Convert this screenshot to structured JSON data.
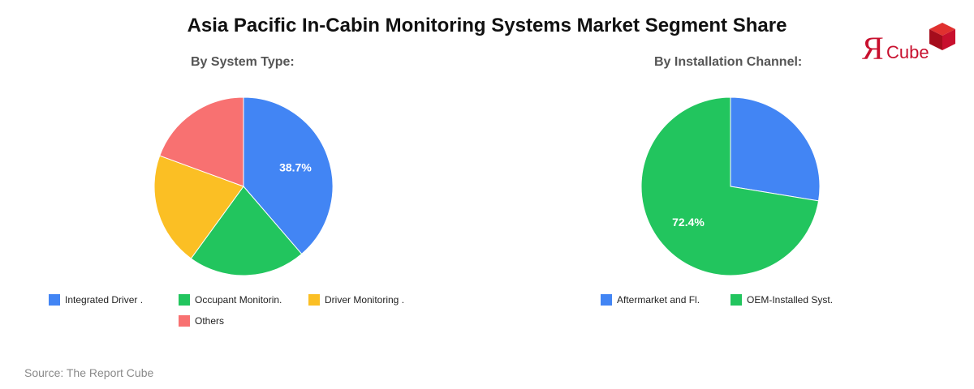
{
  "title": "Asia Pacific In-Cabin Monitoring Systems Market Segment Share",
  "source": "Source: The Report Cube",
  "logo": {
    "mark": "Я",
    "text": "Cube",
    "icon": "red-cube-icon",
    "color": "#c8102e"
  },
  "chart_data": [
    {
      "type": "pie",
      "title": "By System Type:",
      "labels": [
        "Integrated Driver .",
        "Occupant Monitorin.",
        "Driver Monitoring .",
        "Others"
      ],
      "values": [
        38.7,
        21.3,
        20.6,
        19.4
      ],
      "data_labels": [
        "38.7%",
        "",
        "",
        ""
      ],
      "colors": [
        "#4285f4",
        "#22c55e",
        "#fbbf24",
        "#f87171"
      ],
      "legend_position": "bottom"
    },
    {
      "type": "pie",
      "title": "By Installation Channel:",
      "labels": [
        "Aftermarket and Fl.",
        "OEM-Installed Syst."
      ],
      "values": [
        27.6,
        72.4
      ],
      "data_labels": [
        "",
        "72.4%"
      ],
      "colors": [
        "#4285f4",
        "#22c55e"
      ],
      "legend_position": "bottom"
    }
  ]
}
